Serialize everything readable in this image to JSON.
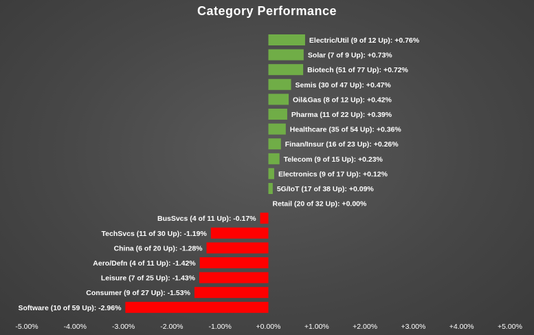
{
  "chart_data": {
    "type": "bar",
    "orientation": "horizontal",
    "title": "Category Performance",
    "xlim": [
      -5,
      5
    ],
    "xticks": [
      -5,
      -4,
      -3,
      -2,
      -1,
      0,
      1,
      2,
      3,
      4,
      5
    ],
    "xtick_labels": [
      "-5.00%",
      "-4.00%",
      "-3.00%",
      "-2.00%",
      "-1.00%",
      "+0.00%",
      "+1.00%",
      "+2.00%",
      "+3.00%",
      "+4.00%",
      "+5.00%"
    ],
    "grid": false,
    "positive_color": "#70ad47",
    "negative_color": "#ff0000",
    "categories": [
      "Electric/Util (9 of 12 Up): +0.76%",
      "Solar (7 of 9 Up): +0.73%",
      "Biotech (51 of 77 Up): +0.72%",
      "Semis (30 of 47 Up): +0.47%",
      "Oil&Gas (8 of 12 Up): +0.42%",
      "Pharma (11 of 22 Up): +0.39%",
      "Healthcare (35 of 54 Up): +0.36%",
      "Finan/Insur (16 of 23 Up): +0.26%",
      "Telecom (9 of 15 Up): +0.23%",
      "Electronics (9 of 17 Up): +0.12%",
      "5G/IoT (17 of 38 Up): +0.09%",
      "Retail (20 of 32 Up): +0.00%",
      "BusSvcs (4 of 11 Up): -0.17%",
      "TechSvcs (11 of 30 Up): -1.19%",
      "China (6 of 20 Up): -1.28%",
      "Aero/Defn (4 of 11 Up): -1.42%",
      "Leisure (7 of 25 Up): -1.43%",
      "Consumer (9 of 27 Up): -1.53%",
      "Software (10 of 59 Up): -2.96%"
    ],
    "values": [
      0.76,
      0.73,
      0.72,
      0.47,
      0.42,
      0.39,
      0.36,
      0.26,
      0.23,
      0.12,
      0.09,
      0.0,
      -0.17,
      -1.19,
      -1.28,
      -1.42,
      -1.43,
      -1.53,
      -2.96
    ]
  }
}
